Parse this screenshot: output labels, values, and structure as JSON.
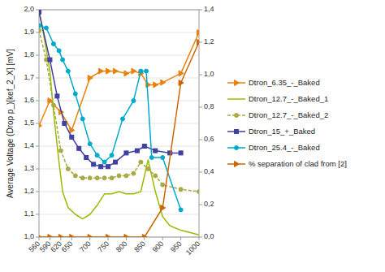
{
  "chart_data": {
    "type": "line",
    "y_label": "Average Voltage (Drop p_)[kef_2_X] [mV]",
    "xlim": [
      560,
      1000
    ],
    "ylim": [
      1.0,
      2.0
    ],
    "y2lim": [
      0.0,
      1.4
    ],
    "xticks": [
      560,
      590,
      620,
      650,
      700,
      750,
      800,
      850,
      900,
      950,
      1000
    ],
    "yticks": [
      {
        "value": 1.0,
        "label": "1,0"
      },
      {
        "value": 1.1,
        "label": "1,1"
      },
      {
        "value": 1.2,
        "label": "1,2"
      },
      {
        "value": 1.3,
        "label": "1,3"
      },
      {
        "value": 1.4,
        "label": "1,4"
      },
      {
        "value": 1.5,
        "label": "1,5"
      },
      {
        "value": 1.6,
        "label": "1,6"
      },
      {
        "value": 1.7,
        "label": "1,7"
      },
      {
        "value": 1.8,
        "label": "1,8"
      },
      {
        "value": 1.9,
        "label": "1,9"
      },
      {
        "value": 2.0,
        "label": "2,0"
      }
    ],
    "y2ticks": [
      {
        "value": 0.0,
        "label": "0,0"
      },
      {
        "value": 0.2,
        "label": "0,2"
      },
      {
        "value": 0.4,
        "label": "0,4"
      },
      {
        "value": 0.6,
        "label": "0,6"
      },
      {
        "value": 0.8,
        "label": "0,8"
      },
      {
        "value": 1.0,
        "label": "1,0"
      },
      {
        "value": 1.2,
        "label": "1,2"
      },
      {
        "value": 1.4,
        "label": "1,4"
      }
    ],
    "grid": true,
    "legend": "right",
    "series": [
      {
        "name": "Dtron_6.35_-_Baked",
        "color": "#E8820A",
        "marker": "triangle-right",
        "line_style": "solid",
        "x": [
          560,
          590,
          620,
          650,
          700,
          730,
          750,
          770,
          800,
          820,
          840,
          860,
          880,
          900,
          950,
          1000
        ],
        "values": [
          1.49,
          1.6,
          1.55,
          1.47,
          1.7,
          1.73,
          1.73,
          1.73,
          1.72,
          1.73,
          1.72,
          1.67,
          1.67,
          1.68,
          1.72,
          1.9
        ]
      },
      {
        "name": "Dtron_12.7_-_Baked_1",
        "color": "#9BBB00",
        "marker": "none",
        "line_style": "solid",
        "x": [
          560,
          575,
          590,
          600,
          615,
          625,
          640,
          660,
          680,
          700,
          720,
          740,
          760,
          780,
          800,
          820,
          840,
          860,
          880,
          900,
          920,
          950,
          1000
        ],
        "values": [
          2.0,
          1.87,
          1.73,
          1.55,
          1.33,
          1.2,
          1.13,
          1.1,
          1.08,
          1.1,
          1.14,
          1.19,
          1.19,
          1.2,
          1.19,
          1.19,
          1.2,
          1.34,
          1.2,
          1.09,
          1.05,
          1.03,
          1.01
        ]
      },
      {
        "name": "Dtron_12.7_-_Baked_2",
        "color": "#AAAA44",
        "marker": "circle",
        "line_style": "dashed",
        "x": [
          560,
          580,
          600,
          620,
          640,
          660,
          680,
          700,
          720,
          740,
          760,
          780,
          800,
          820,
          840,
          860,
          880,
          900,
          950,
          1000
        ],
        "values": [
          1.91,
          1.78,
          1.58,
          1.38,
          1.3,
          1.27,
          1.26,
          1.26,
          1.26,
          1.26,
          1.26,
          1.27,
          1.27,
          1.28,
          1.33,
          1.3,
          1.27,
          1.23,
          1.21,
          1.2
        ]
      },
      {
        "name": "Dtron_15_+_Baked",
        "color": "#4040A0",
        "marker": "square",
        "line_style": "solid",
        "x": [
          560,
          590,
          610,
          630,
          650,
          670,
          690,
          710,
          730,
          750,
          770,
          800,
          830,
          850,
          880,
          920,
          950
        ],
        "values": [
          1.99,
          1.78,
          1.62,
          1.5,
          1.44,
          1.39,
          1.35,
          1.32,
          1.31,
          1.31,
          1.33,
          1.37,
          1.38,
          1.4,
          1.38,
          1.37,
          1.37
        ]
      },
      {
        "name": "Dtron_25.4_-_Baked",
        "color": "#00AACC",
        "marker": "circle",
        "line_style": "solid",
        "x": [
          560,
          580,
          600,
          615,
          625,
          640,
          660,
          680,
          700,
          720,
          740,
          760,
          790,
          820,
          840,
          855,
          870,
          900,
          950
        ],
        "values": [
          1.93,
          1.92,
          1.85,
          1.82,
          1.78,
          1.73,
          1.63,
          1.52,
          1.41,
          1.36,
          1.33,
          1.36,
          1.52,
          1.6,
          1.73,
          1.73,
          1.35,
          1.35,
          1.12
        ]
      },
      {
        "name": "% separation of clad from [2]",
        "color": "#CC6600",
        "marker": "triangle-right",
        "line_style": "solid",
        "axis": "y2",
        "x": [
          560,
          590,
          620,
          650,
          700,
          750,
          800,
          850,
          900,
          950,
          1000
        ],
        "values": [
          0.0,
          0.0,
          0.0,
          0.0,
          0.0,
          0.0,
          0.0,
          0.0,
          0.18,
          0.95,
          1.2
        ]
      }
    ]
  }
}
